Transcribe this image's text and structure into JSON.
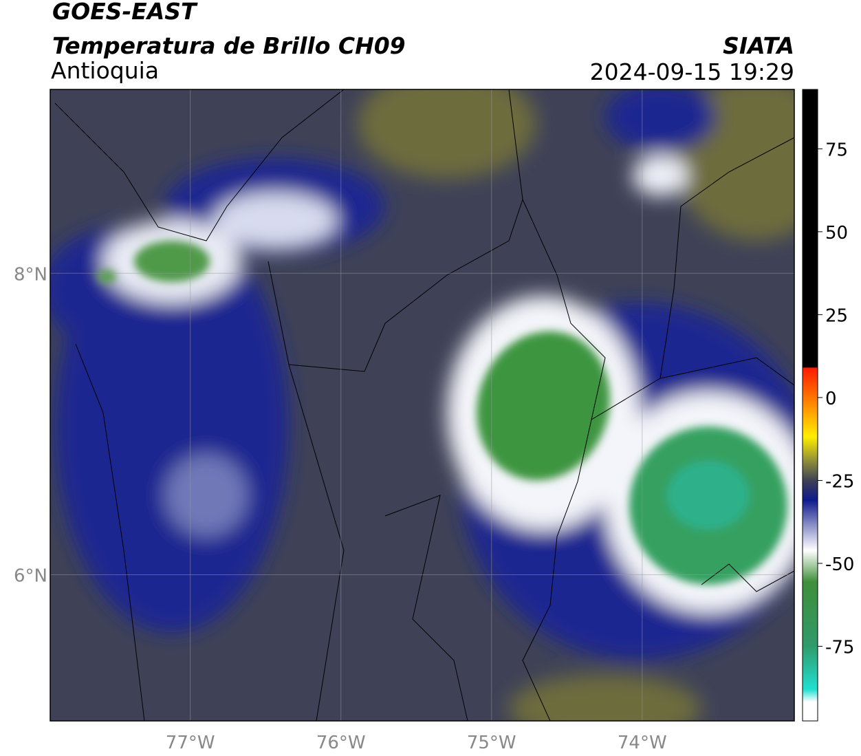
{
  "header": {
    "title": "GOES-EAST",
    "subtitle": "Temperatura de Brillo CH09",
    "region": "Antioquia",
    "source": "SIATA",
    "datetime": "2024-09-15 19:29"
  },
  "map": {
    "xlim": [
      -77.93,
      -72.99
    ],
    "ylim": [
      5.03,
      9.22
    ],
    "xticks": [
      {
        "value": -77,
        "label": "77°W"
      },
      {
        "value": -76,
        "label": "76°W"
      },
      {
        "value": -75,
        "label": "75°W"
      },
      {
        "value": -74,
        "label": "74°W"
      }
    ],
    "yticks": [
      {
        "value": 6,
        "label": "6°N"
      },
      {
        "value": 8,
        "label": "8°N"
      }
    ],
    "grid": true
  },
  "colorbar": {
    "lim": [
      -97.5,
      92.9
    ],
    "ticks": [
      -75,
      -50,
      -25,
      0,
      25,
      50,
      75
    ]
  }
}
